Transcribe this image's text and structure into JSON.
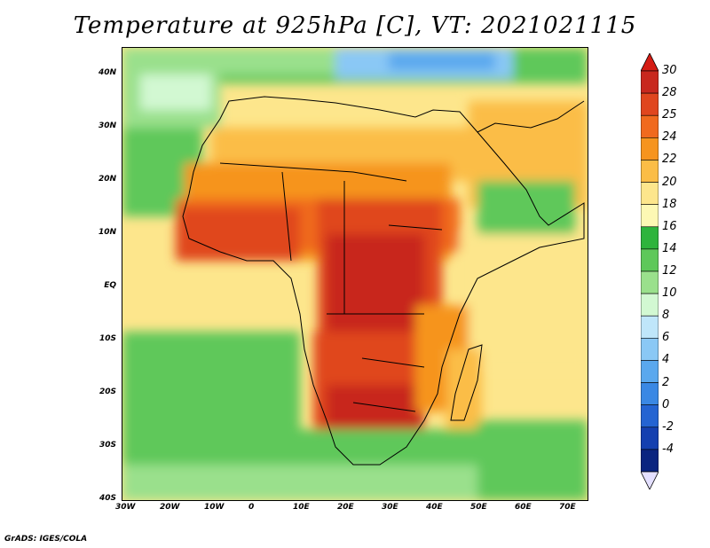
{
  "title": "Temperature at 925hPa [C], VT: 2021021115",
  "credit": "GrADS: IGES/COLA",
  "lat_labels": [
    "40N",
    "30N",
    "20N",
    "10N",
    "EQ",
    "10S",
    "20S",
    "30S",
    "40S"
  ],
  "lon_labels": [
    "30W",
    "20W",
    "10W",
    "0",
    "10E",
    "20E",
    "30E",
    "40E",
    "50E",
    "60E",
    "70E"
  ],
  "colorbar": {
    "labels": [
      "30",
      "28",
      "25",
      "24",
      "22",
      "20",
      "18",
      "16",
      "14",
      "12",
      "10",
      "8",
      "6",
      "4",
      "2",
      "0",
      "-2",
      "-4"
    ],
    "colors": [
      "#c8281e",
      "#e0461e",
      "#f06a1e",
      "#f6941e",
      "#fbbd46",
      "#fde68c",
      "#fdf8b4",
      "#2eb43c",
      "#5ec85a",
      "#9ae08c",
      "#d2f8d2",
      "#bfe6fa",
      "#8ac8f5",
      "#5aa8ee",
      "#3a88e4",
      "#2464d2",
      "#1440b0",
      "#0a2480"
    ],
    "top_color": "#d41c14",
    "bottom_color": "#e4e0ff"
  }
}
